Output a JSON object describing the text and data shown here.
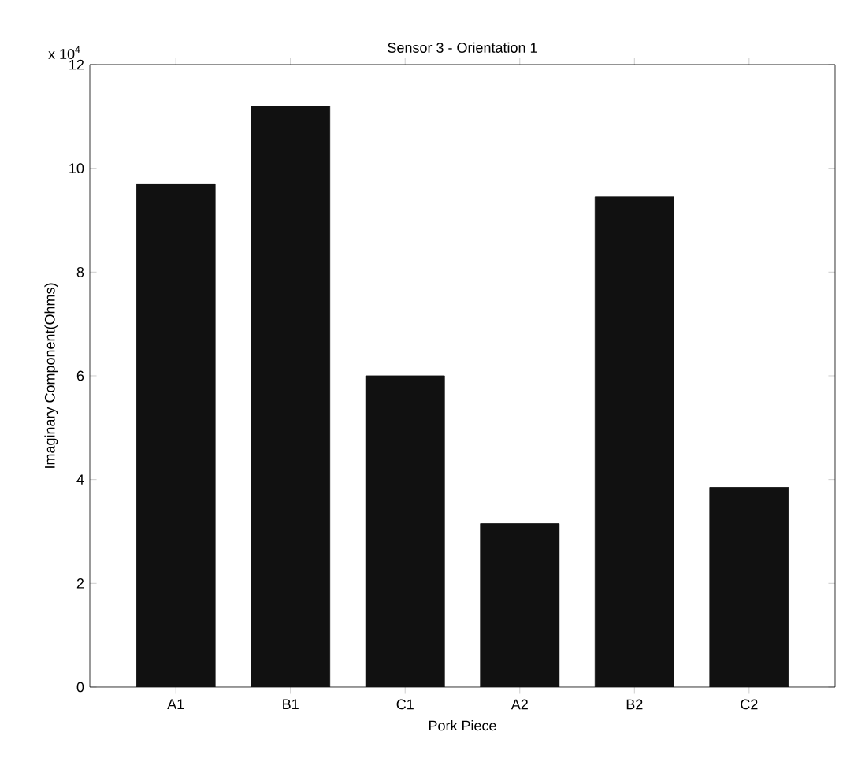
{
  "chart_data": {
    "type": "bar",
    "title": "Sensor 3 - Orientation 1",
    "xlabel": "Pork Piece",
    "ylabel": "Imaginary Component(Ohms)",
    "categories": [
      "A1",
      "B1",
      "C1",
      "A2",
      "B2",
      "C2"
    ],
    "values": [
      9.7,
      11.2,
      6.0,
      3.15,
      9.45,
      3.85
    ],
    "color": "#111111",
    "ylim": [
      0,
      12
    ],
    "yticks": [
      0,
      2,
      4,
      6,
      8,
      10,
      12
    ],
    "grid": false,
    "annotations": [
      "x 10$^{4}$"
    ]
  }
}
